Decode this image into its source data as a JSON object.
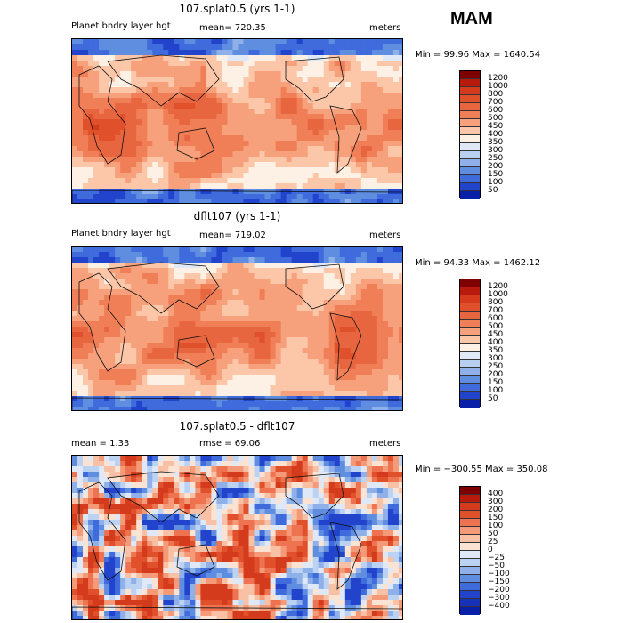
{
  "season": "MAM",
  "panels": [
    {
      "title": "107.splat0.5 (yrs 1-1)",
      "left_label": "Planet bndry layer hgt",
      "stat_label": "mean= 720.35",
      "units": "meters",
      "minmax": "Min =  99.96 Max = 1640.54"
    },
    {
      "title": "dflt107 (yrs 1-1)",
      "left_label": "Planet bndry layer hgt",
      "stat_label": "mean= 719.02",
      "units": "meters",
      "minmax": "Min =  94.33 Max = 1462.12"
    },
    {
      "title": "107.splat0.5 - dflt107",
      "left_label": "mean =    1.33",
      "stat_label": "rmse =   69.06",
      "units": "meters",
      "minmax": "Min = −300.55 Max = 350.08"
    }
  ],
  "chart_data": [
    {
      "type": "heatmap",
      "title": "107.splat0.5 (yrs 1-1)",
      "variable": "Planet bndry layer hgt",
      "units": "meters",
      "mean": 720.35,
      "min": 99.96,
      "max": 1640.54,
      "levels": [
        "1200",
        "1000",
        "800",
        "700",
        "600",
        "500",
        "450",
        "400",
        "350",
        "300",
        "250",
        "200",
        "150",
        "100",
        "50"
      ],
      "colors": [
        "#7f0000",
        "#b81b0e",
        "#d43a1c",
        "#e0502a",
        "#e8663f",
        "#f07f57",
        "#f6a07c",
        "#fbc7a8",
        "#fdf0e4",
        "#dfe8f7",
        "#b8cff0",
        "#8fb0e8",
        "#5f8ee0",
        "#3f6bdc",
        "#2244cc",
        "#0a1fa8"
      ]
    },
    {
      "type": "heatmap",
      "title": "dflt107 (yrs 1-1)",
      "variable": "Planet bndry layer hgt",
      "units": "meters",
      "mean": 719.02,
      "min": 94.33,
      "max": 1462.12,
      "levels": [
        "1200",
        "1000",
        "800",
        "700",
        "600",
        "500",
        "450",
        "400",
        "350",
        "300",
        "250",
        "200",
        "150",
        "100",
        "50"
      ],
      "colors": [
        "#7f0000",
        "#b81b0e",
        "#d43a1c",
        "#e0502a",
        "#e8663f",
        "#f07f57",
        "#f6a07c",
        "#fbc7a8",
        "#fdf0e4",
        "#dfe8f7",
        "#b8cff0",
        "#8fb0e8",
        "#5f8ee0",
        "#3f6bdc",
        "#2244cc",
        "#0a1fa8"
      ]
    },
    {
      "type": "heatmap",
      "title": "107.splat0.5 - dflt107",
      "units": "meters",
      "mean": 1.33,
      "rmse": 69.06,
      "min": -300.55,
      "max": 350.08,
      "levels": [
        "400",
        "300",
        "200",
        "150",
        "100",
        "50",
        "25",
        "0",
        "−25",
        "−50",
        "−100",
        "−150",
        "−200",
        "−300",
        "−400"
      ],
      "colors": [
        "#7f0000",
        "#b81b0e",
        "#d43a1c",
        "#e0502a",
        "#ee7350",
        "#f49a78",
        "#f8c0a4",
        "#fbe3d4",
        "#dfe8f7",
        "#bcd2f2",
        "#8fb0e8",
        "#5f8ee0",
        "#3f6bdc",
        "#2244cc",
        "#1633b8",
        "#0a1fa8"
      ]
    }
  ]
}
